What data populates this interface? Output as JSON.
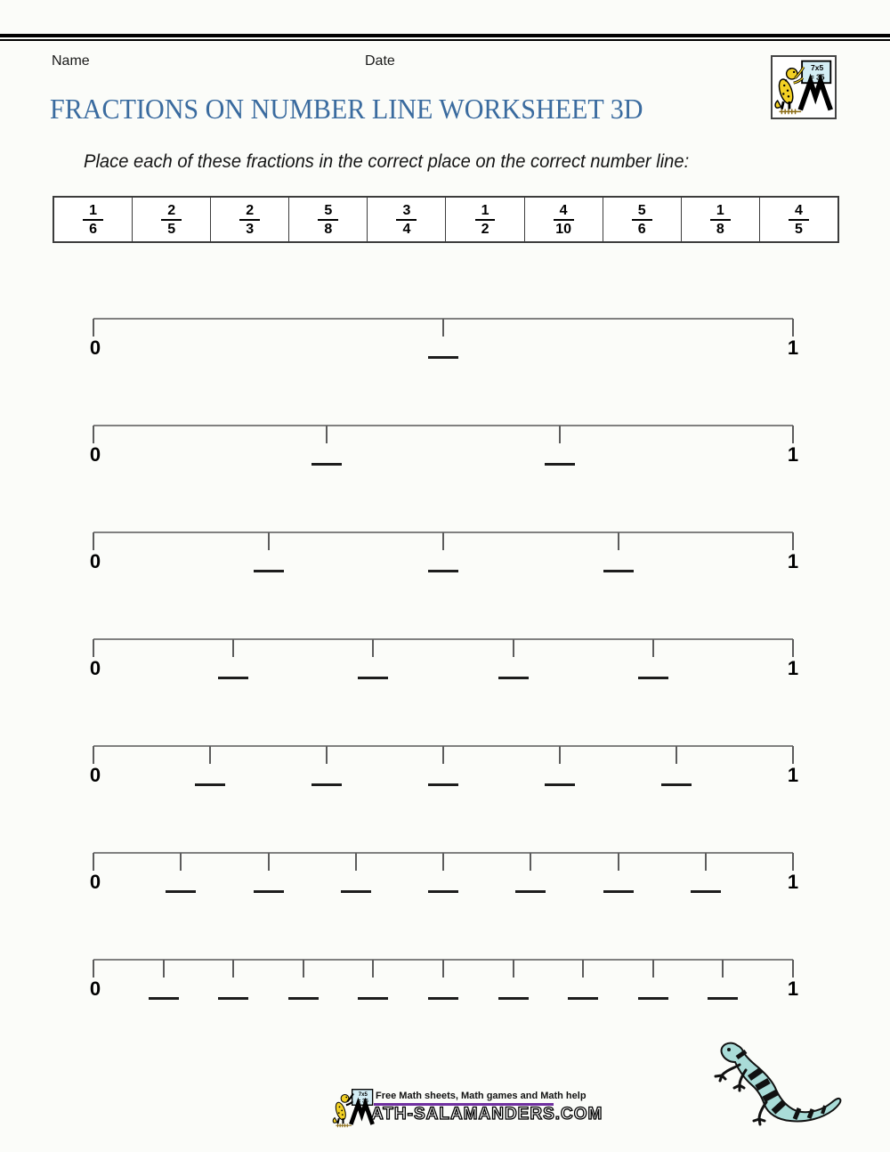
{
  "header": {
    "name_label": "Name",
    "date_label": "Date"
  },
  "title": "FRACTIONS ON NUMBER LINE WORKSHEET 3D",
  "instruction": "Place each of these fractions in the correct place on the correct number line:",
  "fractions": [
    {
      "numerator": "1",
      "denominator": "6"
    },
    {
      "numerator": "2",
      "denominator": "5"
    },
    {
      "numerator": "2",
      "denominator": "3"
    },
    {
      "numerator": "5",
      "denominator": "8"
    },
    {
      "numerator": "3",
      "denominator": "4"
    },
    {
      "numerator": "1",
      "denominator": "2"
    },
    {
      "numerator": "4",
      "denominator": "10"
    },
    {
      "numerator": "5",
      "denominator": "6"
    },
    {
      "numerator": "1",
      "denominator": "8"
    },
    {
      "numerator": "4",
      "denominator": "5"
    }
  ],
  "number_lines": [
    {
      "divisions": 2,
      "start_label": "0",
      "end_label": "1"
    },
    {
      "divisions": 3,
      "start_label": "0",
      "end_label": "1"
    },
    {
      "divisions": 4,
      "start_label": "0",
      "end_label": "1"
    },
    {
      "divisions": 5,
      "start_label": "0",
      "end_label": "1"
    },
    {
      "divisions": 6,
      "start_label": "0",
      "end_label": "1"
    },
    {
      "divisions": 8,
      "start_label": "0",
      "end_label": "1"
    },
    {
      "divisions": 10,
      "start_label": "0",
      "end_label": "1"
    }
  ],
  "logo": {
    "board_line1": "7x5",
    "board_line2": "= 35"
  },
  "footer": {
    "tagline": "Free Math sheets, Math games and Math help",
    "site": "ATH-SALAMANDERS.COM"
  },
  "colors": {
    "title_blue": "#3a6b9f",
    "footer_purple": "#7030a0",
    "salamander_yellow": "#f2d024",
    "salamander_blue": "#a9dcd8"
  }
}
